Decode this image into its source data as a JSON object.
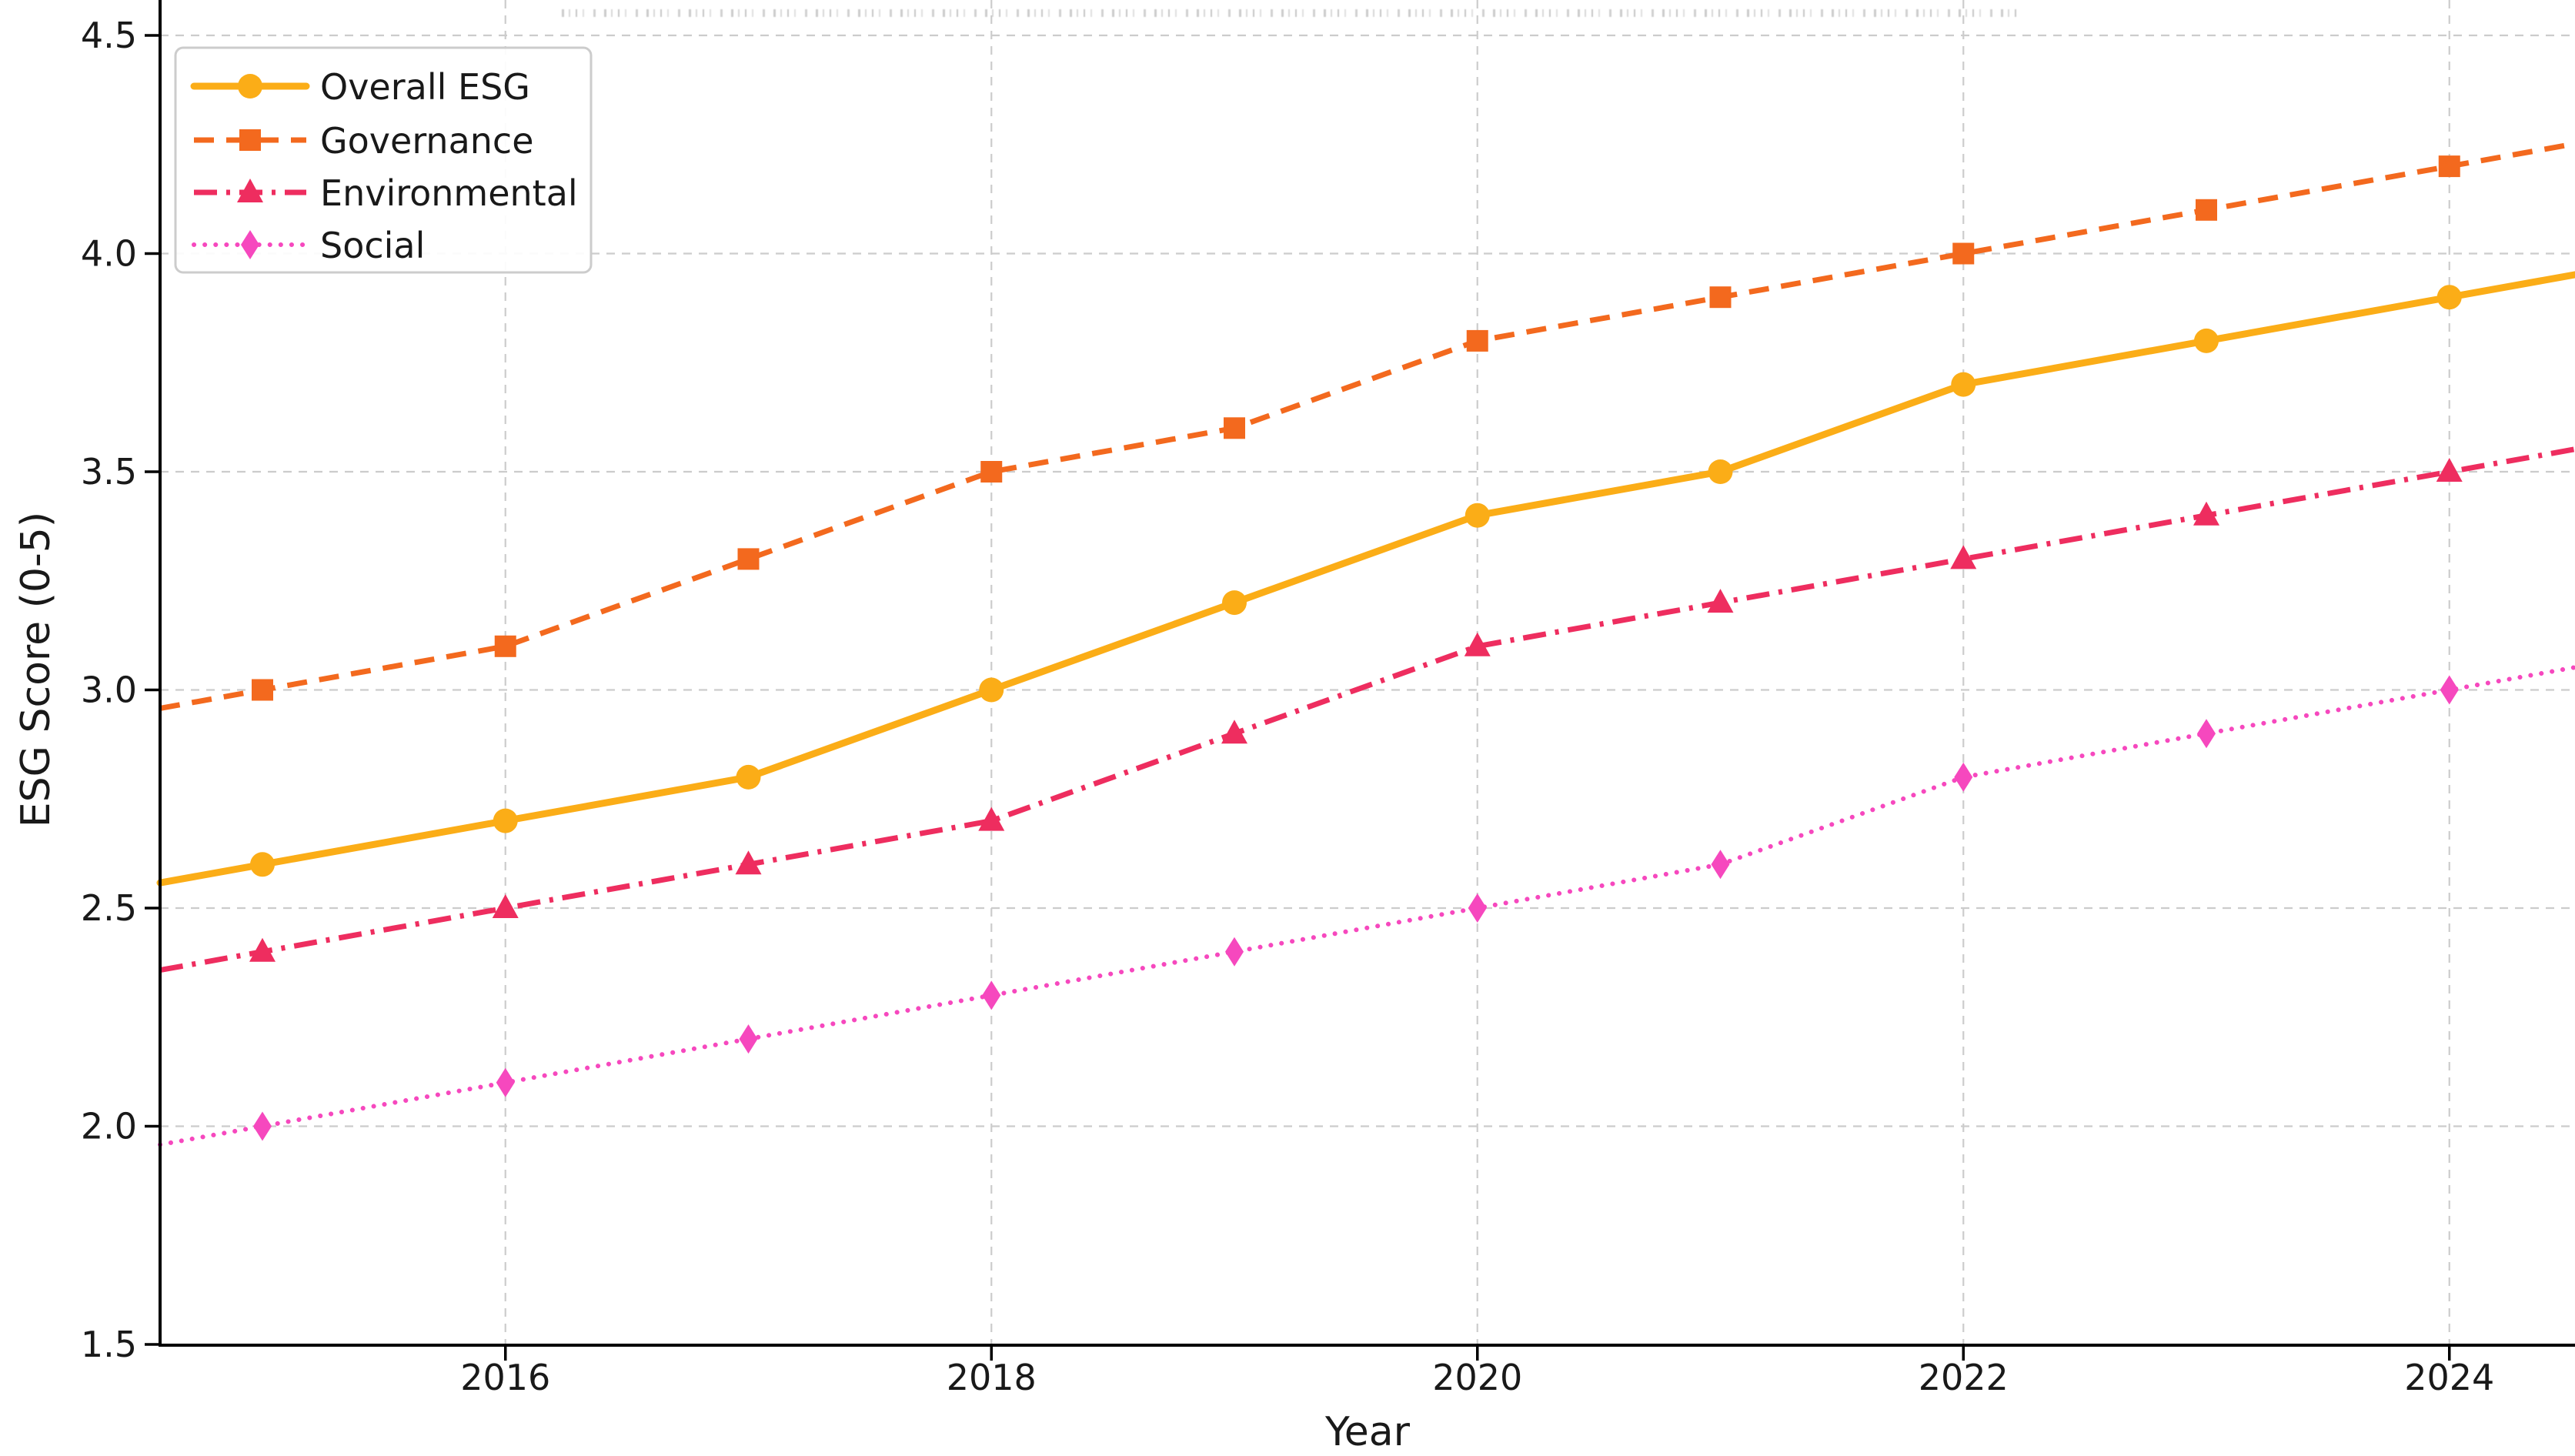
{
  "chart_data": {
    "type": "line",
    "title": "",
    "title_clipped": true,
    "xlabel": "Year",
    "ylabel": "ESG Score (0-5)",
    "x": [
      2015,
      2016,
      2017,
      2018,
      2019,
      2020,
      2021,
      2022,
      2023,
      2024
    ],
    "x_tick_labels": [
      "2016",
      "2018",
      "2020",
      "2022",
      "2024"
    ],
    "y_tick_labels": [
      "1.5",
      "2.0",
      "2.5",
      "3.0",
      "3.5",
      "4.0",
      "4.5"
    ],
    "y_ticks": [
      1.5,
      2.0,
      2.5,
      3.0,
      3.5,
      4.0,
      4.5
    ],
    "ylim": [
      1.5,
      4.58
    ],
    "grid": true,
    "grid_style": "dashed",
    "legend_position": "upper left",
    "colors": {
      "text": "#191919",
      "spine": "#000000",
      "gridline": "#cccccc",
      "legend_border": "#cccccc",
      "background": "#ffffff"
    },
    "series": [
      {
        "name": "Overall ESG",
        "color": "#FBAD17",
        "line_style": "solid",
        "line_width": 9,
        "marker": "circle",
        "values": [
          2.6,
          2.7,
          2.8,
          3.0,
          3.2,
          3.4,
          3.5,
          3.7,
          3.8,
          3.9
        ]
      },
      {
        "name": "Governance",
        "color": "#F3691E",
        "line_style": "dashed",
        "line_width": 7,
        "marker": "square",
        "values": [
          3.0,
          3.1,
          3.3,
          3.5,
          3.6,
          3.8,
          3.9,
          4.0,
          4.1,
          4.2
        ]
      },
      {
        "name": "Environmental",
        "color": "#EE2D5F",
        "line_style": "dashdot",
        "line_width": 7,
        "marker": "triangle",
        "values": [
          2.4,
          2.5,
          2.6,
          2.7,
          2.9,
          3.1,
          3.2,
          3.3,
          3.4,
          3.5
        ]
      },
      {
        "name": "Social",
        "color": "#F648BE",
        "line_style": "dotted",
        "line_width": 6,
        "marker": "diamond",
        "values": [
          2.0,
          2.1,
          2.2,
          2.3,
          2.4,
          2.5,
          2.6,
          2.8,
          2.9,
          3.0
        ]
      }
    ]
  }
}
